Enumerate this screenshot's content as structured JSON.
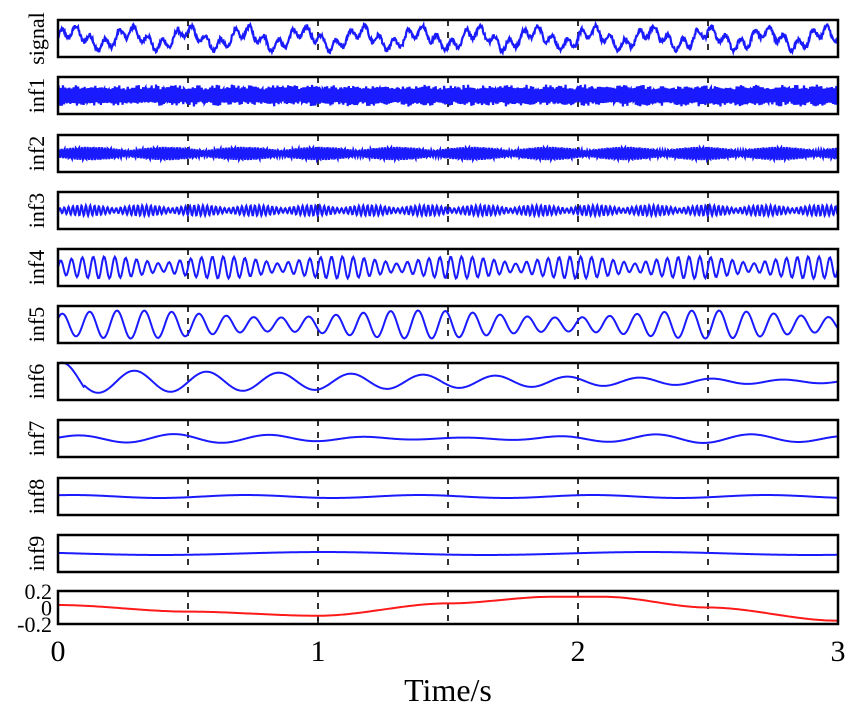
{
  "chart_data": {
    "type": "line",
    "xlabel": "Time/s",
    "xlim": [
      0,
      3
    ],
    "x_ticks": [
      "0",
      "1",
      "2",
      "3"
    ],
    "vertical_dashed_gridlines_at": [
      0.5,
      1,
      1.5,
      2,
      2.5
    ],
    "series": [
      {
        "name": "signal",
        "color": "#1a1aff",
        "form": "broadband noisy oscillation",
        "cycles_per_second": 18,
        "relative_amplitude": 0.35
      },
      {
        "name": "inf1",
        "color": "#1a1aff",
        "form": "very high frequency dense oscillation",
        "cycles_per_second": 120,
        "relative_amplitude": 0.3
      },
      {
        "name": "inf2",
        "color": "#1a1aff",
        "form": "high frequency oscillation with bursts",
        "cycles_per_second": 90,
        "relative_amplitude": 0.18
      },
      {
        "name": "inf3",
        "color": "#1a1aff",
        "form": "high frequency low amplitude oscillation",
        "cycles_per_second": 60,
        "relative_amplitude": 0.14
      },
      {
        "name": "inf4",
        "color": "#1a1aff",
        "form": "amplitude modulated oscillation",
        "cycles_per_second": 24,
        "relative_amplitude": 0.3
      },
      {
        "name": "inf5",
        "color": "#1a1aff",
        "form": "oscillation",
        "cycles_per_second": 9.5,
        "relative_amplitude": 0.38
      },
      {
        "name": "inf6",
        "color": "#1a1aff",
        "form": "slow oscillation, damped toward end",
        "cycles_per_second": 3.6,
        "relative_amplitude": 0.32
      },
      {
        "name": "inf7",
        "color": "#1a1aff",
        "form": "slow small oscillation",
        "cycles_per_second": 2.7,
        "relative_amplitude": 0.12
      },
      {
        "name": "inf8",
        "color": "#1a1aff",
        "form": "nearly flat line",
        "cycles_per_second": 1.5,
        "relative_amplitude": 0.05
      },
      {
        "name": "inf9",
        "color": "#1a1aff",
        "form": "nearly flat line",
        "cycles_per_second": 0.8,
        "relative_amplitude": 0.05
      },
      {
        "name": "",
        "color": "#ff1a1a",
        "form": "residual trend",
        "ylim": [
          -0.2,
          0.2
        ],
        "y_ticks": [
          "0.2",
          "0",
          "-0.2"
        ],
        "x": [
          0,
          0.5,
          1,
          1.5,
          1.9,
          2.1,
          2.5,
          3
        ],
        "values": [
          0.03,
          -0.05,
          -0.1,
          0.05,
          0.13,
          0.13,
          0.0,
          -0.16
        ]
      }
    ]
  }
}
